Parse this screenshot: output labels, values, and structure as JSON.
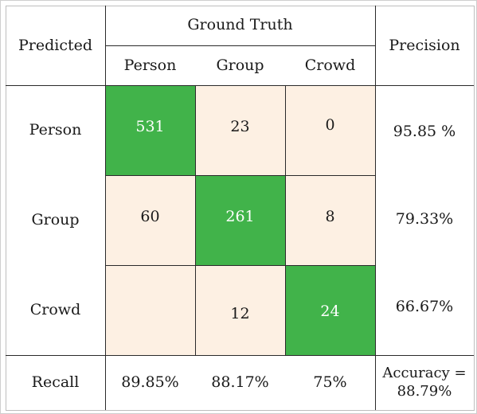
{
  "table": {
    "predicted_header": "Predicted",
    "ground_truth_header": "Ground Truth",
    "precision_header": "Precision",
    "recall_label": "Recall",
    "columns": [
      "Person",
      "Group",
      "Crowd"
    ],
    "rows": [
      {
        "label": "Person",
        "values": [
          "531",
          "23",
          "0"
        ],
        "precision": "95.85 %"
      },
      {
        "label": "Group",
        "values": [
          "60",
          "261",
          "8"
        ],
        "precision": "79.33%"
      },
      {
        "label": "Crowd",
        "values": [
          "",
          "12",
          "24"
        ],
        "precision": "66.67%"
      }
    ],
    "recall": [
      "89.85%",
      "88.17%",
      "75%"
    ],
    "accuracy_line1": "Accuracy =",
    "accuracy_line2": "88.79%"
  },
  "colors": {
    "diagonal": "#41b34a",
    "off_diagonal": "#fdf0e3",
    "grid_line": "#2a2a2a"
  }
}
